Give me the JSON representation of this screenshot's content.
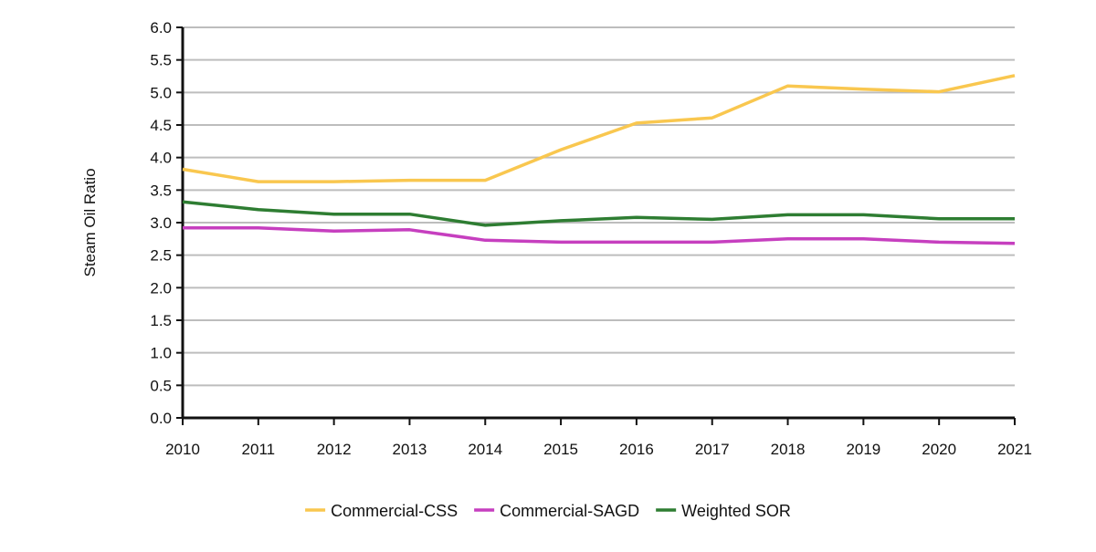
{
  "chart_data": {
    "type": "line",
    "title": "",
    "xlabel": "",
    "ylabel": "Steam Oil Ratio",
    "x": [
      "2010",
      "2011",
      "2012",
      "2013",
      "2014",
      "2015",
      "2016",
      "2017",
      "2018",
      "2019",
      "2020",
      "2021"
    ],
    "ylim": [
      0,
      6
    ],
    "y_ticks": [
      "0.0",
      "0.5",
      "1.0",
      "1.5",
      "2.0",
      "2.5",
      "3.0",
      "3.5",
      "4.0",
      "4.5",
      "5.0",
      "5.5",
      "6.0"
    ],
    "grid": true,
    "legend_position": "bottom",
    "series": [
      {
        "name": "Commercial-CSS",
        "color": "#f9c74f",
        "values": [
          3.82,
          3.63,
          3.63,
          3.65,
          3.65,
          4.12,
          4.53,
          4.61,
          5.1,
          5.05,
          5.01,
          5.26
        ]
      },
      {
        "name": "Commercial-SAGD",
        "color": "#c63fbf",
        "values": [
          2.92,
          2.92,
          2.87,
          2.89,
          2.73,
          2.7,
          2.7,
          2.7,
          2.75,
          2.75,
          2.7,
          2.68
        ]
      },
      {
        "name": "Weighted SOR",
        "color": "#2e7d32",
        "values": [
          3.32,
          3.2,
          3.13,
          3.13,
          2.96,
          3.03,
          3.08,
          3.05,
          3.12,
          3.12,
          3.06,
          3.06
        ]
      }
    ]
  }
}
